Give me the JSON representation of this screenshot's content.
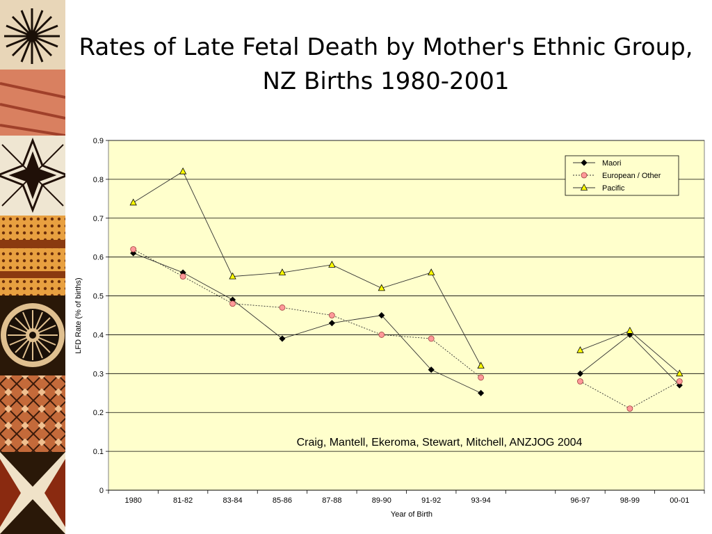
{
  "slide": {
    "title": "Rates of Late Fetal Death by Mother's Ethnic Group, NZ Births 1980-2001"
  },
  "colors": {
    "plot_background": "#FFFFCC",
    "maori": "#000000",
    "european_other": "#FF9999",
    "pacific": "#FFFF00",
    "gridline": "#000000"
  },
  "chart_data": {
    "type": "line",
    "title": "",
    "xlabel": "Year of Birth",
    "ylabel": "LFD Rate (% of births)",
    "ylim": [
      0,
      0.9
    ],
    "yticks": [
      "0",
      "0.1",
      "0.2",
      "0.3",
      "0.4",
      "0.5",
      "0.6",
      "0.7",
      "0.8",
      "0.9"
    ],
    "categories": [
      "1980",
      "81-82",
      "83-84",
      "85-86",
      "87-88",
      "89-90",
      "91-92",
      "93-94",
      "",
      "96-97",
      "98-99",
      "00-01"
    ],
    "grid": "horizontal",
    "legend_position": "top-right",
    "annotation": "Craig, Mantell, Ekeroma, Stewart, Mitchell, ANZJOG 2004",
    "series": [
      {
        "name": "Maori",
        "marker": "diamond",
        "line": "solid",
        "values": [
          0.61,
          0.56,
          0.49,
          0.39,
          0.43,
          0.45,
          0.31,
          0.25,
          null,
          0.3,
          0.4,
          0.27
        ]
      },
      {
        "name": "European / Other",
        "marker": "circle",
        "line": "dotted",
        "values": [
          0.62,
          0.55,
          0.48,
          0.47,
          0.45,
          0.4,
          0.39,
          0.29,
          null,
          0.28,
          0.21,
          0.28
        ]
      },
      {
        "name": "Pacific",
        "marker": "triangle",
        "line": "solid",
        "values": [
          0.74,
          0.82,
          0.55,
          0.56,
          0.58,
          0.52,
          0.56,
          0.32,
          null,
          0.36,
          0.41,
          0.3
        ]
      }
    ]
  }
}
